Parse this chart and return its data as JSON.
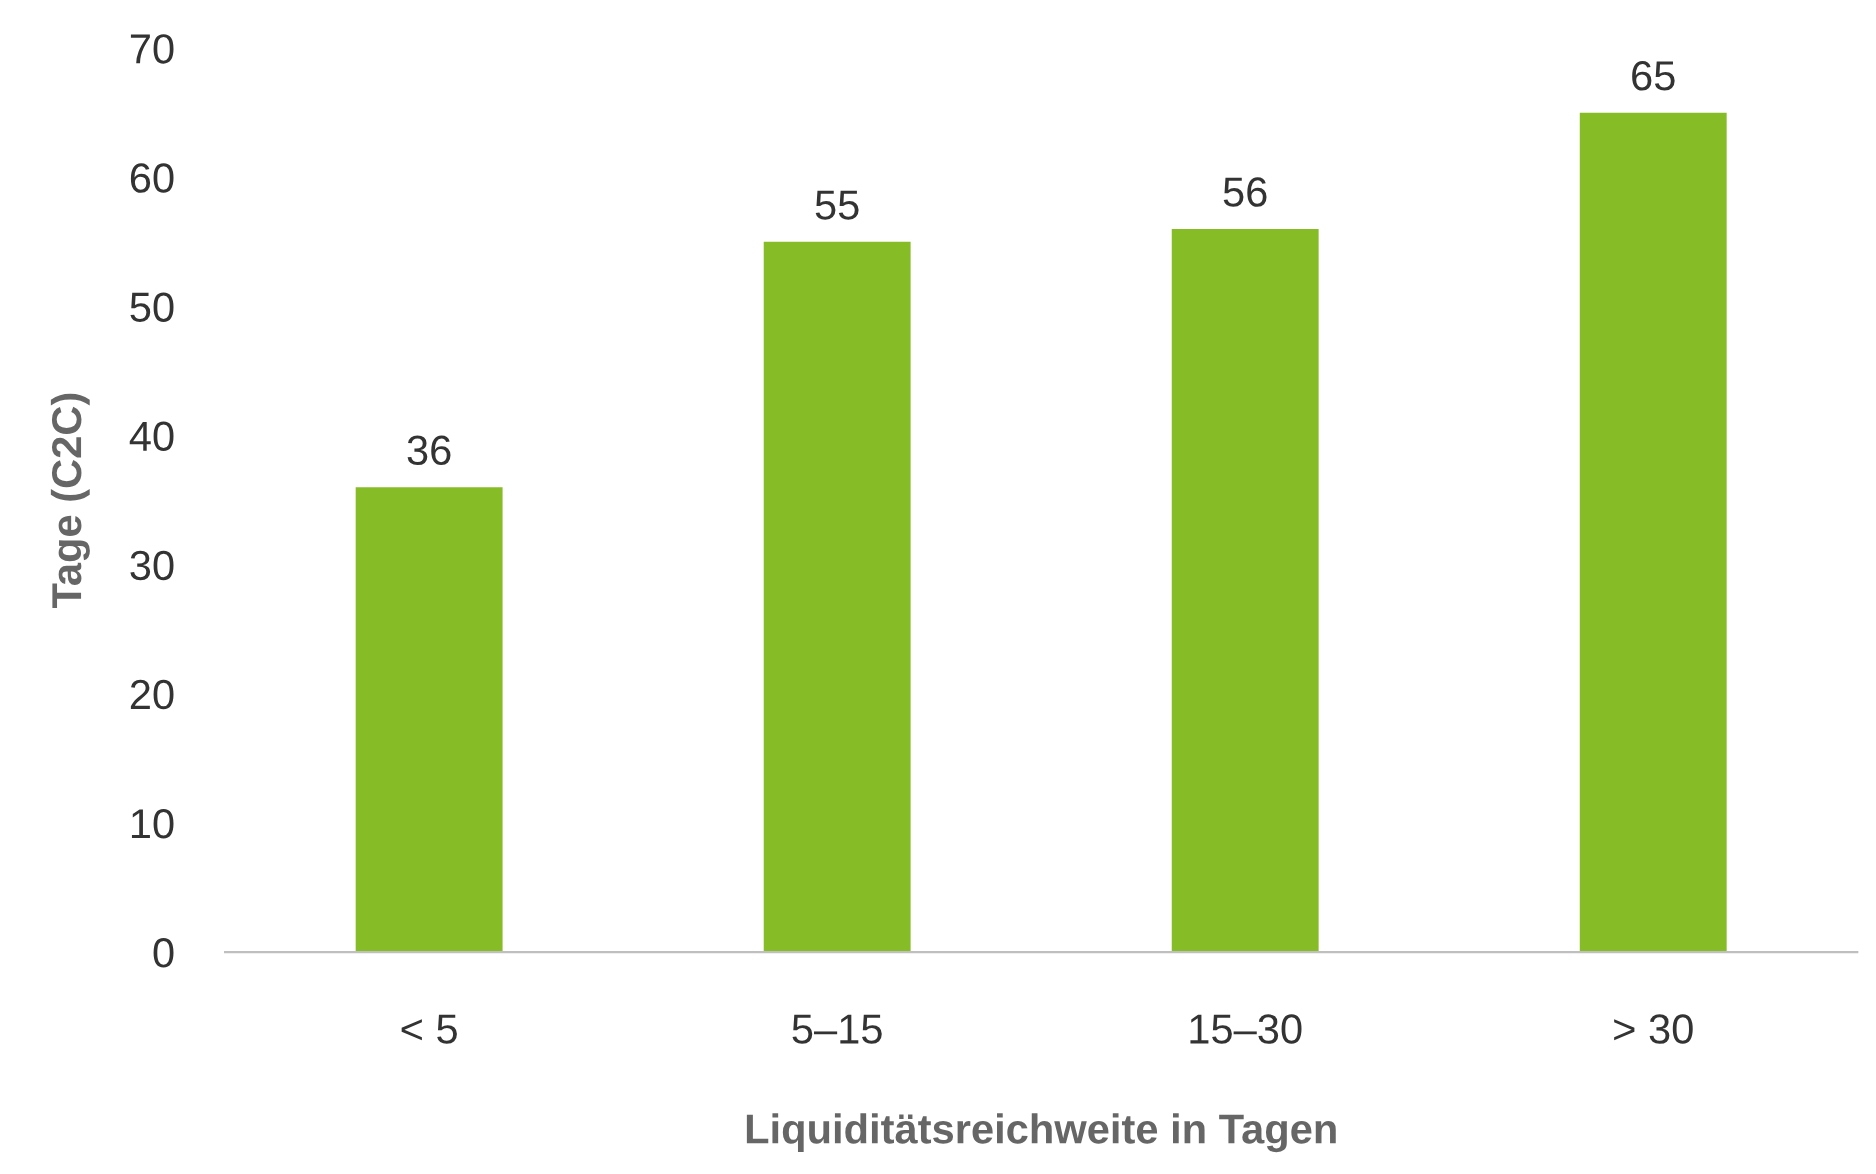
{
  "chart_data": {
    "type": "bar",
    "xlabel": "Liquiditätsreichweite in Tagen",
    "ylabel": "Tage (C2C)",
    "categories": [
      "< 5",
      "5–15",
      "15–30",
      "> 30"
    ],
    "values": [
      36,
      55,
      56,
      65
    ],
    "color": "#86bc25",
    "ylim": [
      0,
      70
    ],
    "yticks": [
      0,
      10,
      20,
      30,
      40,
      50,
      60,
      70
    ],
    "data_labels": true,
    "grid": false,
    "legend": false
  }
}
